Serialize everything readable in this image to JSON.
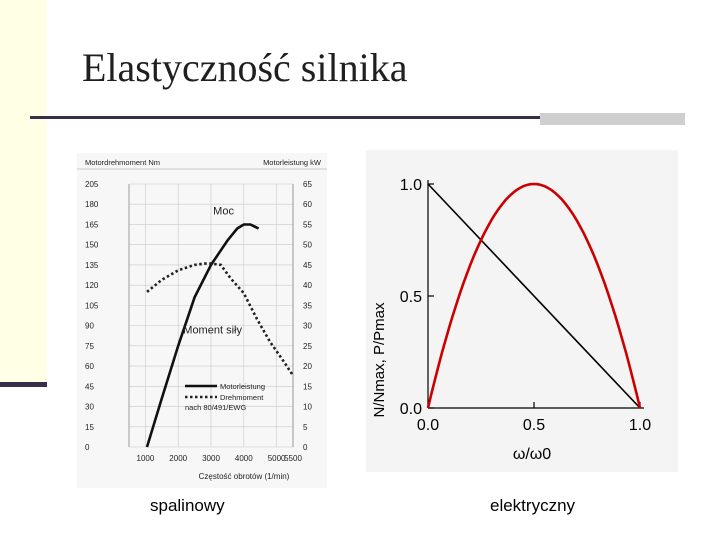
{
  "slide": {
    "title": "Elastyczność silnika",
    "caption_left": "spalinowy",
    "caption_right": "elektryczny"
  },
  "chart_data": [
    {
      "type": "line",
      "header_left": "Motordrehmoment Nm",
      "header_right": "Motorleistung kW",
      "xlabel": "Częstość obrotów (1/min)",
      "xlim": [
        500,
        5500
      ],
      "x_ticks": [
        1000,
        2000,
        3000,
        4000,
        5000,
        5500
      ],
      "y_left_lim": [
        0,
        205
      ],
      "y_left_ticks": [
        0,
        15,
        30,
        45,
        60,
        75,
        90,
        105,
        120,
        135,
        150,
        165,
        180,
        205
      ],
      "y_right_lim": [
        0,
        65
      ],
      "y_right_ticks": [
        0,
        5,
        10,
        15,
        20,
        25,
        30,
        35,
        40,
        45,
        50,
        55,
        60,
        65
      ],
      "annotations": [
        {
          "text": "Moc",
          "rpm": 3700,
          "axis": "right",
          "value": 57.5
        },
        {
          "text": "Moment siły",
          "rpm": 3050,
          "axis": "left",
          "value": 84
        }
      ],
      "legend": [
        "Motorleistung",
        "Drehmoment",
        "nach 80/491/EWG"
      ],
      "series": [
        {
          "key": "power",
          "axis": "right",
          "style": "solid",
          "x": [
            1050,
            1500,
            2000,
            2500,
            3000,
            3500,
            3800,
            4000,
            4200,
            4450
          ],
          "y": [
            0,
            12,
            25,
            37,
            45,
            51,
            54,
            55,
            55,
            54
          ]
        },
        {
          "key": "torque",
          "axis": "left",
          "style": "dotted",
          "x": [
            1050,
            1500,
            2000,
            2500,
            2800,
            3000,
            3300,
            3600,
            4000,
            4400,
            4800,
            5200,
            5500
          ],
          "y": [
            115,
            124,
            131,
            135,
            136,
            136,
            135,
            125,
            114,
            95,
            78,
            64,
            53
          ]
        }
      ]
    },
    {
      "type": "line",
      "xlabel": "ω/ω0",
      "ylabel": "N/Nmax, P/Pmax",
      "xlim": [
        0,
        1
      ],
      "ylim": [
        0,
        1
      ],
      "x_ticks": [
        "0.0",
        "0.5",
        "1.0"
      ],
      "y_ticks": [
        "0.0",
        "0.5",
        "1.0"
      ],
      "series": [
        {
          "key": "torque-linear",
          "color": "#000000",
          "x": [
            0,
            1
          ],
          "y": [
            1,
            0
          ]
        },
        {
          "key": "power-parabola",
          "color": "#cc0000",
          "x": [
            0,
            0.1,
            0.2,
            0.3,
            0.4,
            0.5,
            0.6,
            0.7,
            0.8,
            0.9,
            1
          ],
          "y": [
            0,
            0.36,
            0.64,
            0.84,
            0.96,
            1,
            0.96,
            0.84,
            0.64,
            0.36,
            0
          ]
        }
      ]
    }
  ]
}
